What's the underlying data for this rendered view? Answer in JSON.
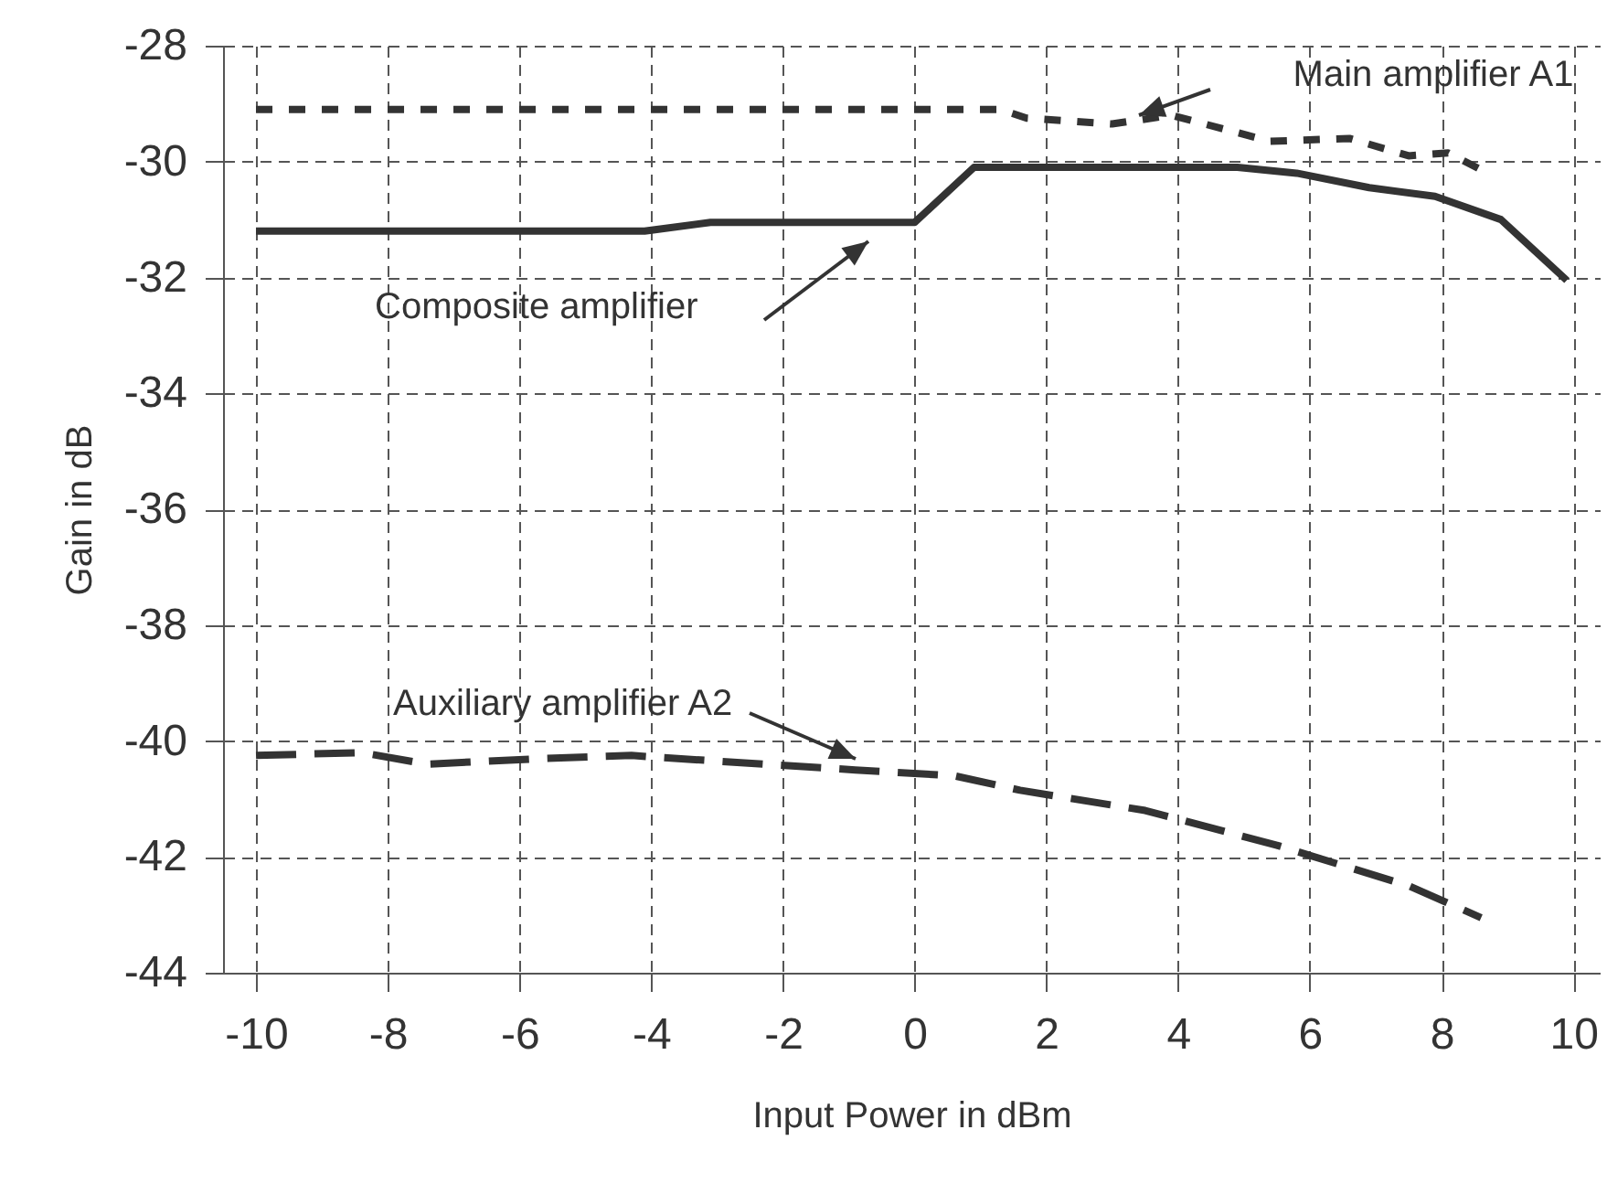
{
  "chart_data": {
    "type": "line",
    "xlabel": "Input Power in dBm",
    "ylabel": "Gain in dB",
    "xlim": [
      -10.5,
      10.4
    ],
    "xticks": [
      -10,
      -8,
      -6,
      -4,
      -2,
      0,
      2,
      4,
      6,
      8,
      10
    ],
    "ylim": [
      -44,
      -28
    ],
    "yticks": [
      -44,
      -42,
      -40,
      -38,
      -36,
      -34,
      -32,
      -30,
      -28
    ],
    "grid": true,
    "legend": false,
    "marker": "none",
    "series": [
      {
        "name": "Main amplifier A1",
        "color": "#333333",
        "line_style": "dotted",
        "x": [
          -10,
          1.3,
          1.7,
          3.0,
          3.9,
          5.4,
          6.6,
          7.5,
          8.1,
          8.7
        ],
        "values": [
          -29.1,
          -29.1,
          -29.25,
          -29.35,
          -29.2,
          -29.65,
          -29.6,
          -29.9,
          -29.85,
          -30.2
        ]
      },
      {
        "name": "Composite amplifier",
        "color": "#333333",
        "line_style": "solid",
        "x": [
          -10,
          -4.1,
          -3.1,
          0,
          0.9,
          4.9,
          5.8,
          6.9,
          7.9,
          8.9,
          9.9
        ],
        "values": [
          -31.2,
          -31.2,
          -31.05,
          -31.05,
          -30.1,
          -30.1,
          -30.2,
          -30.45,
          -30.6,
          -31.0,
          -32.05
        ]
      },
      {
        "name": "Auxiliary amplifier A2",
        "color": "#333333",
        "line_style": "dashed",
        "x": [
          -10,
          -8.4,
          -7.4,
          -5.6,
          -4.3,
          -2.3,
          -0.9,
          0.6,
          1.6,
          3.5,
          5.5,
          7.5,
          8.6
        ],
        "values": [
          -40.25,
          -40.2,
          -40.4,
          -40.3,
          -40.25,
          -40.4,
          -40.5,
          -40.6,
          -40.85,
          -41.2,
          -41.8,
          -42.5,
          -43.05
        ]
      }
    ]
  }
}
